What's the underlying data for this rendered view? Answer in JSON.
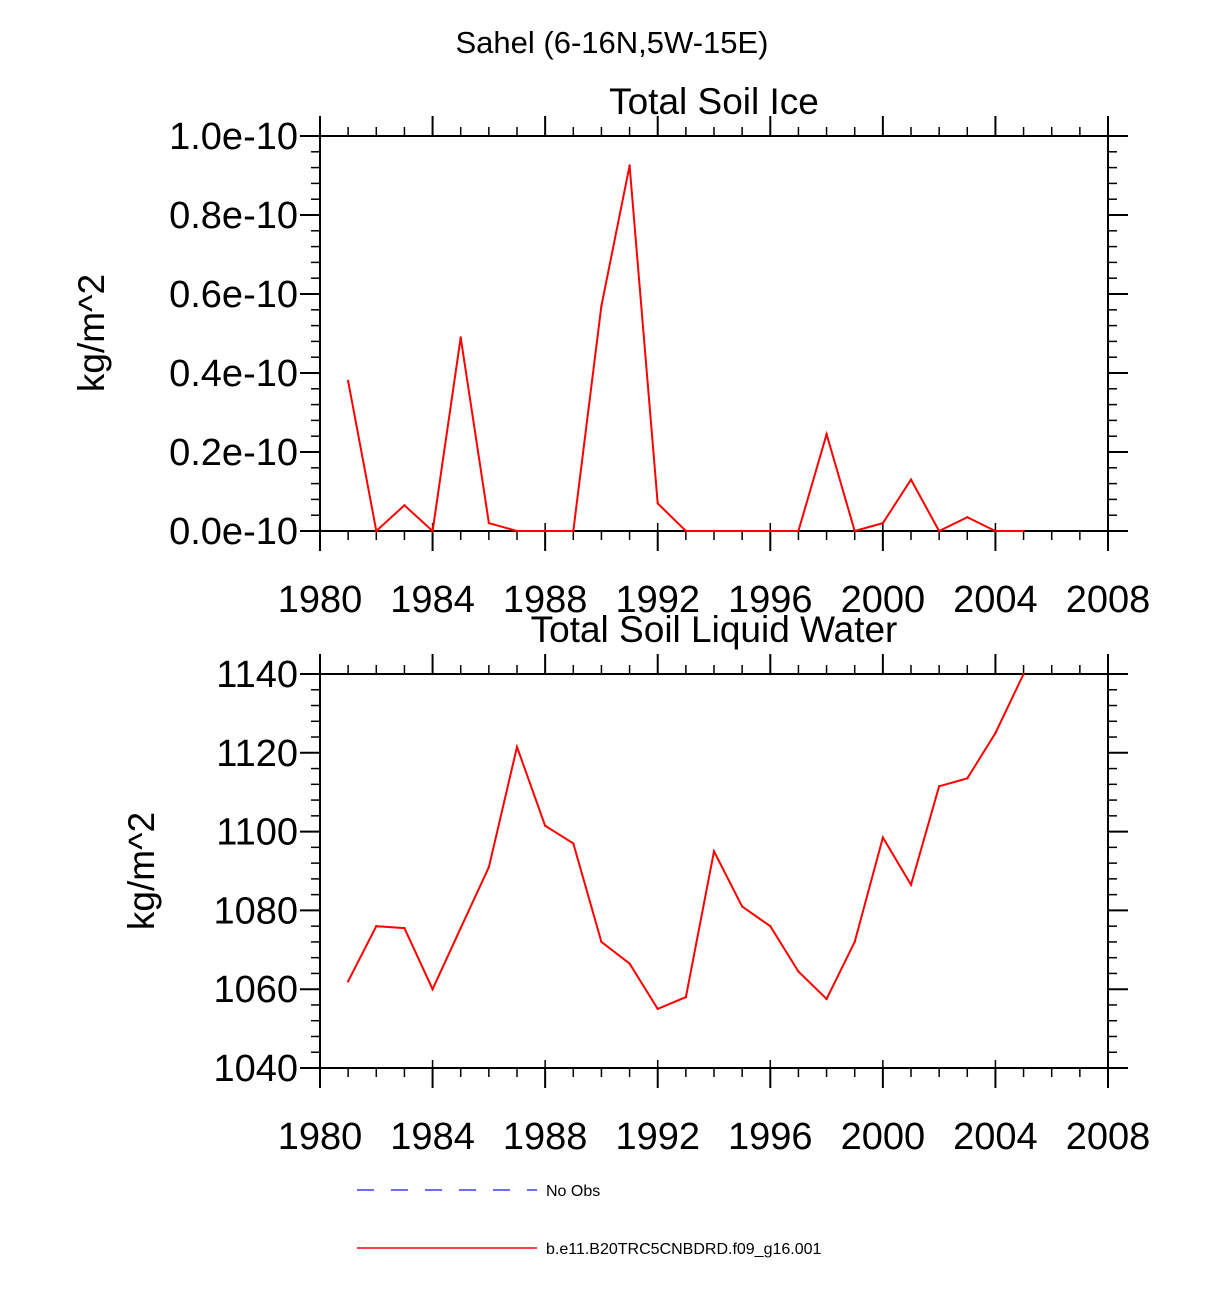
{
  "figure": {
    "suptitle": "Sahel (6-16N,5W-15E)"
  },
  "chart_data": [
    {
      "type": "line",
      "title": "Total Soil Ice",
      "ylabel": "kg/m^2",
      "xlabel": "",
      "xlim": [
        1980,
        2008
      ],
      "ylim": [
        0,
        1.0
      ],
      "y_scale_label": "e-10",
      "x_ticks": [
        "1980",
        "1984",
        "1988",
        "1992",
        "1996",
        "2000",
        "2004",
        "2008"
      ],
      "y_ticks": [
        "0.0e-10",
        "0.2e-10",
        "0.4e-10",
        "0.6e-10",
        "0.8e-10",
        "1.0e-10"
      ],
      "series": [
        {
          "name": "b.e11.B20TRC5CNBDRD.f09_g16.001",
          "color": "#ff0000",
          "x": [
            1981,
            1982,
            1983,
            1984,
            1985,
            1986,
            1987,
            1988,
            1989,
            1990,
            1991,
            1992,
            1993,
            1994,
            1995,
            1996,
            1997,
            1998,
            1999,
            2000,
            2001,
            2002,
            2003,
            2004,
            2005
          ],
          "values": [
            0.38,
            0.0,
            0.065,
            0.0,
            0.49,
            0.02,
            0.0,
            0.0,
            0.0,
            0.57,
            0.925,
            0.07,
            0.0,
            0.0,
            0.0,
            0.0,
            0.0,
            0.245,
            0.0,
            0.02,
            0.13,
            0.0,
            0.035,
            0.0,
            0.0
          ]
        }
      ]
    },
    {
      "type": "line",
      "title": "Total Soil Liquid Water",
      "ylabel": "kg/m^2",
      "xlabel": "",
      "xlim": [
        1980,
        2008
      ],
      "ylim": [
        1040,
        1140
      ],
      "x_ticks": [
        "1980",
        "1984",
        "1988",
        "1992",
        "1996",
        "2000",
        "2004",
        "2008"
      ],
      "y_ticks": [
        "1040",
        "1060",
        "1080",
        "1100",
        "1120",
        "1140"
      ],
      "series": [
        {
          "name": "b.e11.B20TRC5CNBDRD.f09_g16.001",
          "color": "#ff0000",
          "x": [
            1981,
            1982,
            1983,
            1984,
            1985,
            1986,
            1987,
            1988,
            1989,
            1990,
            1991,
            1992,
            1993,
            1994,
            1995,
            1996,
            1997,
            1998,
            1999,
            2000,
            2001,
            2002,
            2003,
            2004,
            2005
          ],
          "values": [
            1062,
            1076,
            1075.5,
            1060,
            1075.5,
            1091,
            1121.5,
            1101.5,
            1097,
            1072,
            1066.5,
            1055,
            1058,
            1095,
            1081,
            1076,
            1064.5,
            1057.5,
            1072,
            1098.5,
            1086.5,
            1111.5,
            1113.5,
            1125,
            1140
          ]
        }
      ]
    }
  ],
  "legend": [
    {
      "label": "No Obs",
      "color": "#3b3bff",
      "style": "dashed"
    },
    {
      "label": "b.e11.B20TRC5CNBDRD.f09_g16.001",
      "color": "#ff0000",
      "style": "solid"
    }
  ]
}
